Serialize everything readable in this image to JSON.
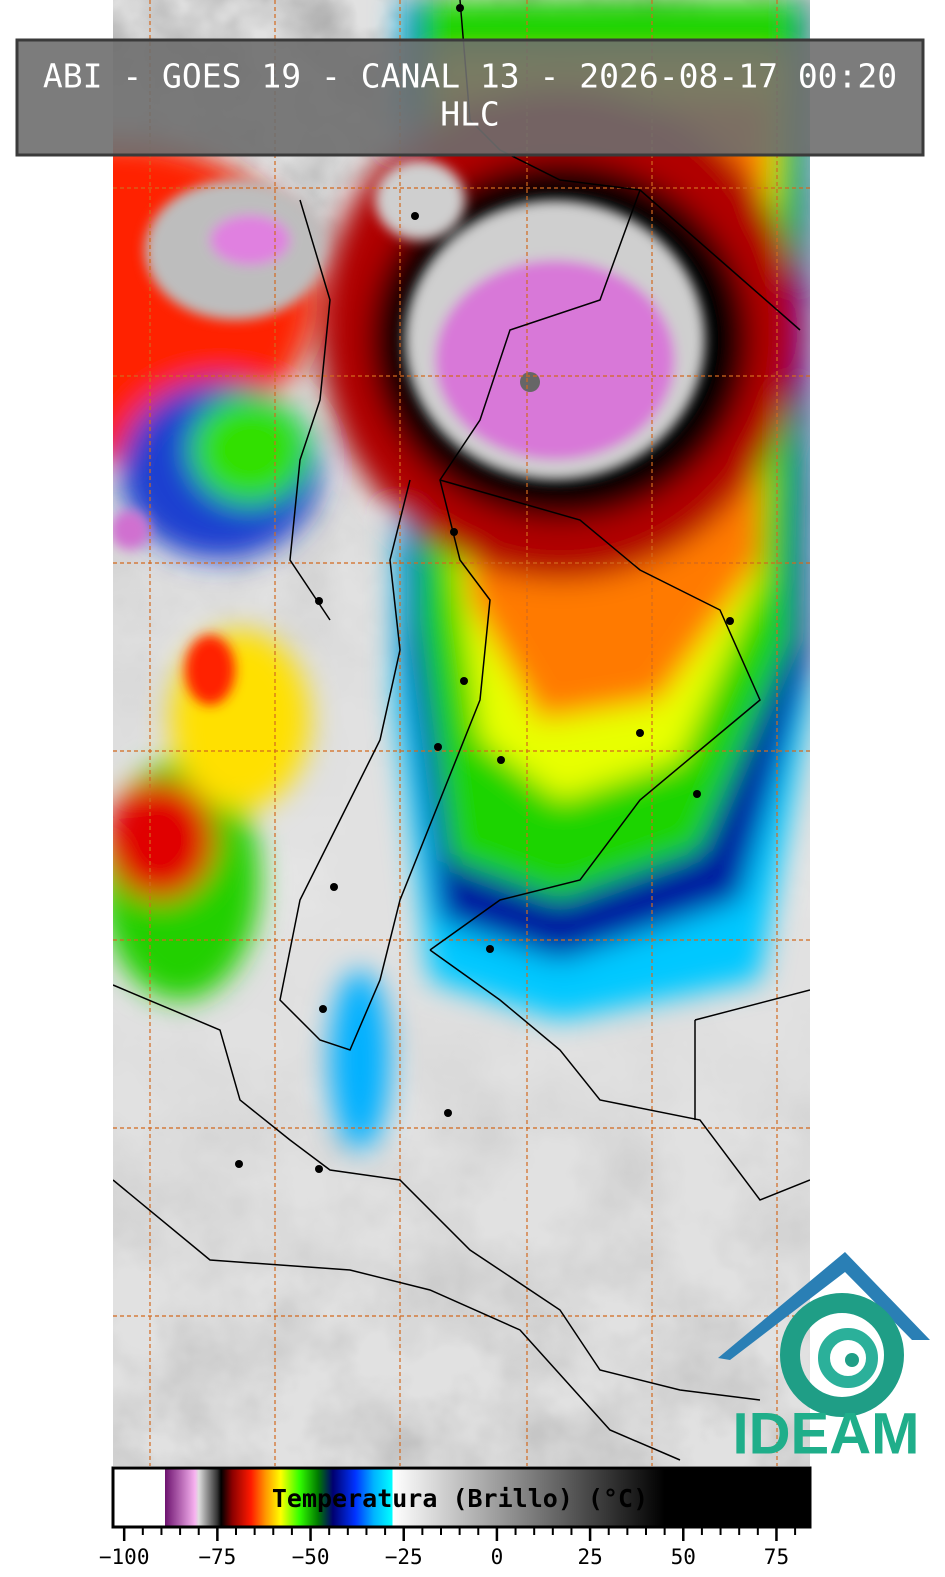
{
  "header": {
    "title": "ABI - GOES 19 - CANAL 13 - 2026-08-17 00:20",
    "subtitle": "HLC"
  },
  "colorbar": {
    "label": "Temperatura (Brillo) (°C)",
    "xlim": [
      -103,
      84
    ],
    "xticks": [
      {
        "value": -100,
        "label": "−100"
      },
      {
        "value": -75,
        "label": "−75"
      },
      {
        "value": -50,
        "label": "−50"
      },
      {
        "value": -25,
        "label": "−25"
      },
      0,
      25,
      50,
      75
    ],
    "minor_xticks": [
      -95,
      -90,
      -85,
      -80,
      -70,
      -65,
      -60,
      -55,
      -45,
      -40,
      -35,
      -30,
      -20,
      -15,
      -10,
      -5,
      5,
      10,
      15,
      20,
      30,
      35,
      40,
      45,
      55,
      60,
      65,
      70,
      80
    ],
    "stops": [
      {
        "value": -103,
        "color": "#ffffff"
      },
      {
        "value": -89,
        "color": "#ffffff"
      },
      {
        "value": -89,
        "color": "#6e1470"
      },
      {
        "value": -81,
        "color": "#f7b2f0"
      },
      {
        "value": -80,
        "color": "#dddddd"
      },
      {
        "value": -75,
        "color": "#333333"
      },
      {
        "value": -74,
        "color": "#000000"
      },
      {
        "value": -71,
        "color": "#8b0000"
      },
      {
        "value": -66,
        "color": "#ff1a00"
      },
      {
        "value": -62,
        "color": "#ff9900"
      },
      {
        "value": -58,
        "color": "#ffff00"
      },
      {
        "value": -53,
        "color": "#33ff00"
      },
      {
        "value": -48,
        "color": "#007a00"
      },
      {
        "value": -44,
        "color": "#000070"
      },
      {
        "value": -38,
        "color": "#0033ff"
      },
      {
        "value": -33,
        "color": "#00b4ff"
      },
      {
        "value": -28,
        "color": "#00ffff"
      },
      {
        "value": -28,
        "color": "#ffffff"
      },
      {
        "value": 45,
        "color": "#000000"
      },
      {
        "value": 84,
        "color": "#000000"
      }
    ]
  },
  "logo": {
    "text": "IDEAM"
  }
}
